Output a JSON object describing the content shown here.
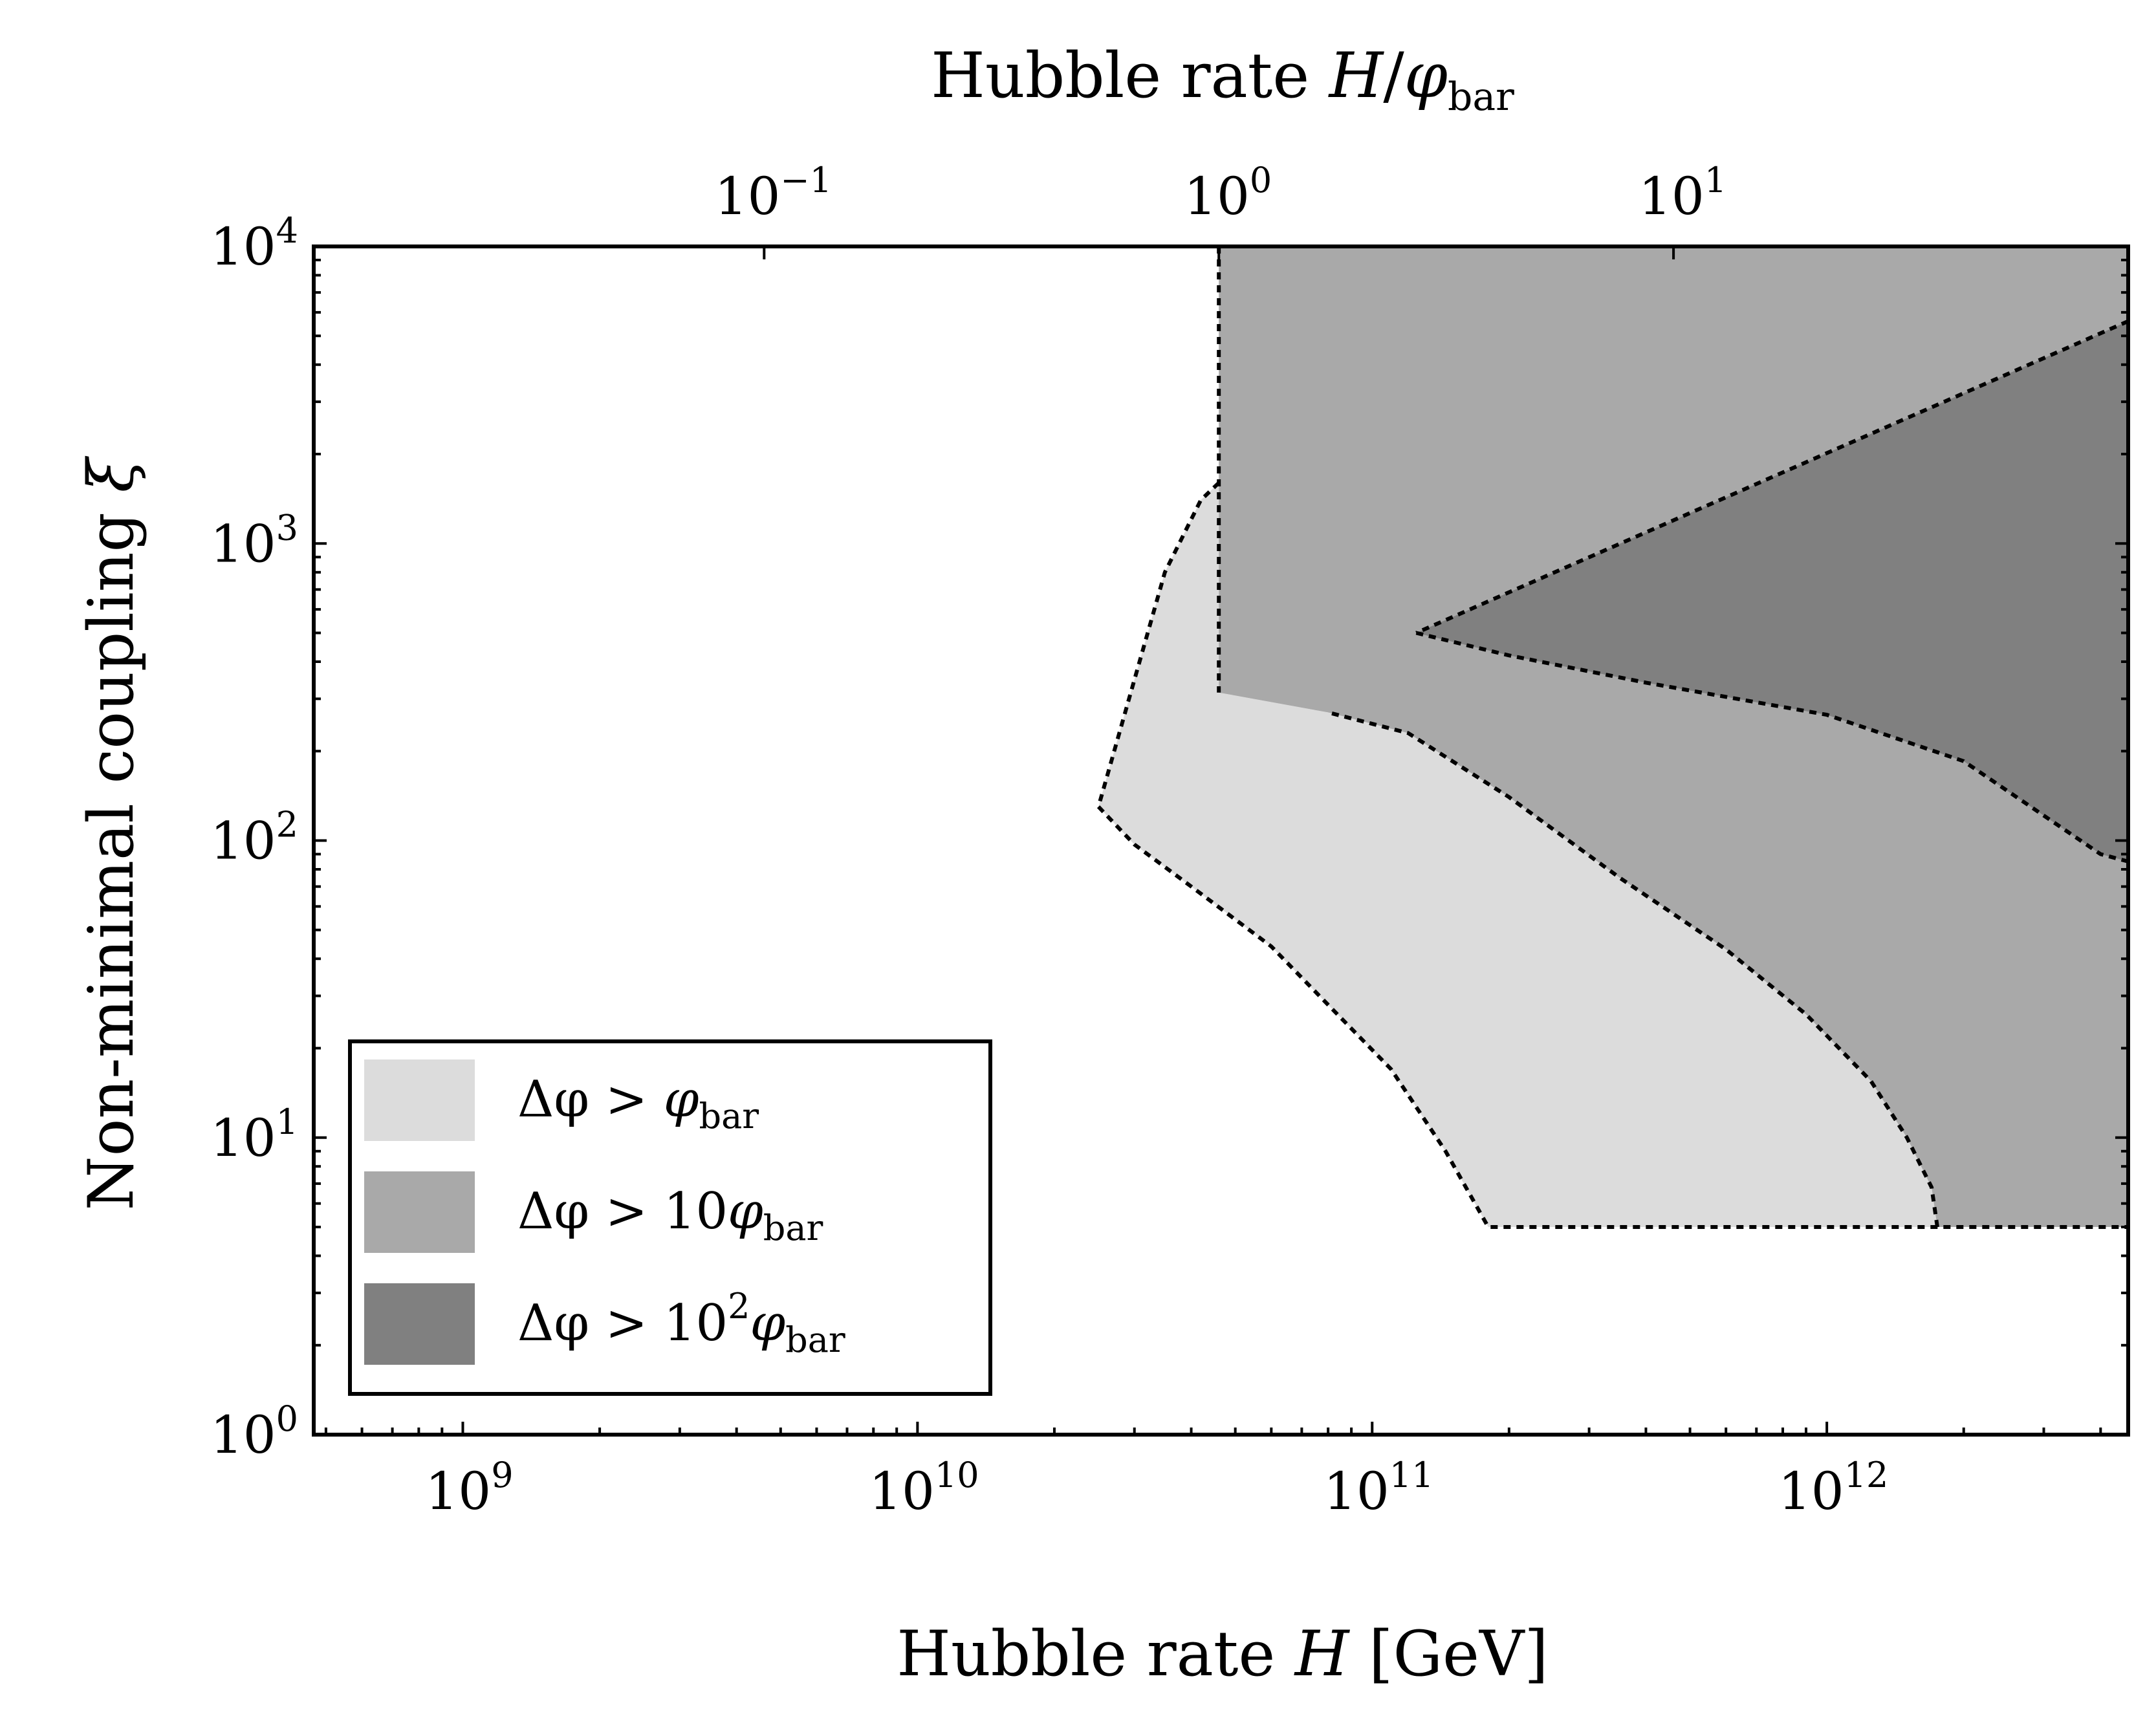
{
  "chart_data": {
    "type": "area",
    "title": "",
    "x_scale": "log",
    "y_scale": "log",
    "xlabel": {
      "main": "Hubble rate ",
      "var": "H",
      "unit": " [GeV]"
    },
    "ylabel": {
      "main": "Non-minimal coupling ",
      "var": "ξ"
    },
    "top_xlabel": {
      "main": "Hubble rate ",
      "var": "H",
      "slash": "/",
      "phi": "φ",
      "sub": "bar"
    },
    "xlim": [
      470000000.0,
      4600000000000.0
    ],
    "ylim": [
      1,
      10000
    ],
    "top_axis_scale_gev": 46000000000.0,
    "x_ticks": [
      {
        "value": 1000000000.0,
        "base": "10",
        "exp": "9"
      },
      {
        "value": 10000000000.0,
        "base": "10",
        "exp": "10"
      },
      {
        "value": 100000000000.0,
        "base": "10",
        "exp": "11"
      },
      {
        "value": 1000000000000.0,
        "base": "10",
        "exp": "12"
      }
    ],
    "y_ticks": [
      {
        "value": 1,
        "base": "10",
        "exp": "0"
      },
      {
        "value": 10,
        "base": "10",
        "exp": "1"
      },
      {
        "value": 100,
        "base": "10",
        "exp": "2"
      },
      {
        "value": 1000,
        "base": "10",
        "exp": "3"
      },
      {
        "value": 10000,
        "base": "10",
        "exp": "4"
      }
    ],
    "top_ticks": [
      {
        "value": 0.1,
        "base": "10",
        "exp": "−1"
      },
      {
        "value": 1,
        "base": "10",
        "exp": "0"
      },
      {
        "value": 10,
        "base": "10",
        "exp": "1"
      }
    ],
    "series": [
      {
        "name": "Δφ > φ_bar",
        "color": "#dcdcdc",
        "boundary": [
          [
            25000000000.0,
            130
          ],
          [
            30000000000.0,
            97
          ],
          [
            40000000000.0,
            70
          ],
          [
            60000000000.0,
            44
          ],
          [
            80000000000.0,
            28
          ],
          [
            110000000000.0,
            17
          ],
          [
            145000000000.0,
            9
          ],
          [
            180000000000.0,
            5
          ],
          [
            1750000000000.0,
            5
          ],
          [
            1700000000000.0,
            6.8
          ],
          [
            1500000000000.0,
            10
          ],
          [
            1250000000000.0,
            15.5
          ],
          [
            900000000000.0,
            26
          ],
          [
            600000000000.0,
            43
          ],
          [
            350000000000.0,
            75
          ],
          [
            200000000000.0,
            140
          ],
          [
            120000000000.0,
            230
          ],
          [
            80000000000.0,
            270
          ],
          [
            46000000000.0,
            315
          ],
          [
            46000000000.0,
            1600
          ],
          [
            42000000000.0,
            1400
          ],
          [
            35000000000.0,
            800
          ]
        ]
      },
      {
        "name": "Δφ > 10φ_bar",
        "color": "#a9a9a9",
        "boundary": [
          [
            46000000000.0,
            10000
          ],
          [
            4600000000000.0,
            10000
          ],
          [
            4600000000000.0,
            5
          ],
          [
            1750000000000.0,
            5
          ],
          [
            1700000000000.0,
            6.8
          ],
          [
            1500000000000.0,
            10
          ],
          [
            1250000000000.0,
            15.5
          ],
          [
            900000000000.0,
            26
          ],
          [
            600000000000.0,
            43
          ],
          [
            350000000000.0,
            75
          ],
          [
            200000000000.0,
            140
          ],
          [
            120000000000.0,
            230
          ],
          [
            80000000000.0,
            270
          ],
          [
            46000000000.0,
            315
          ]
        ]
      },
      {
        "name": "Δφ > 10²φ_bar",
        "color": "#808080",
        "boundary": [
          [
            125000000000.0,
            500
          ],
          [
            4600000000000.0,
            5600
          ],
          [
            4600000000000.0,
            85
          ],
          [
            4000000000000.0,
            90
          ],
          [
            2000000000000.0,
            185
          ],
          [
            1000000000000.0,
            265
          ],
          [
            400000000000.0,
            340
          ],
          [
            200000000000.0,
            420
          ]
        ]
      }
    ],
    "legend": {
      "location": "lower-left",
      "entries": [
        {
          "color": "#dcdcdc",
          "prefix": "Δφ > ",
          "coeff": "",
          "exp": "",
          "phi": "φ",
          "sub": "bar"
        },
        {
          "color": "#a9a9a9",
          "prefix": "Δφ > ",
          "coeff": "10",
          "exp": "",
          "phi": "φ",
          "sub": "bar"
        },
        {
          "color": "#808080",
          "prefix": "Δφ > ",
          "coeff": "10",
          "exp": "2",
          "phi": "φ",
          "sub": "bar"
        }
      ]
    }
  }
}
